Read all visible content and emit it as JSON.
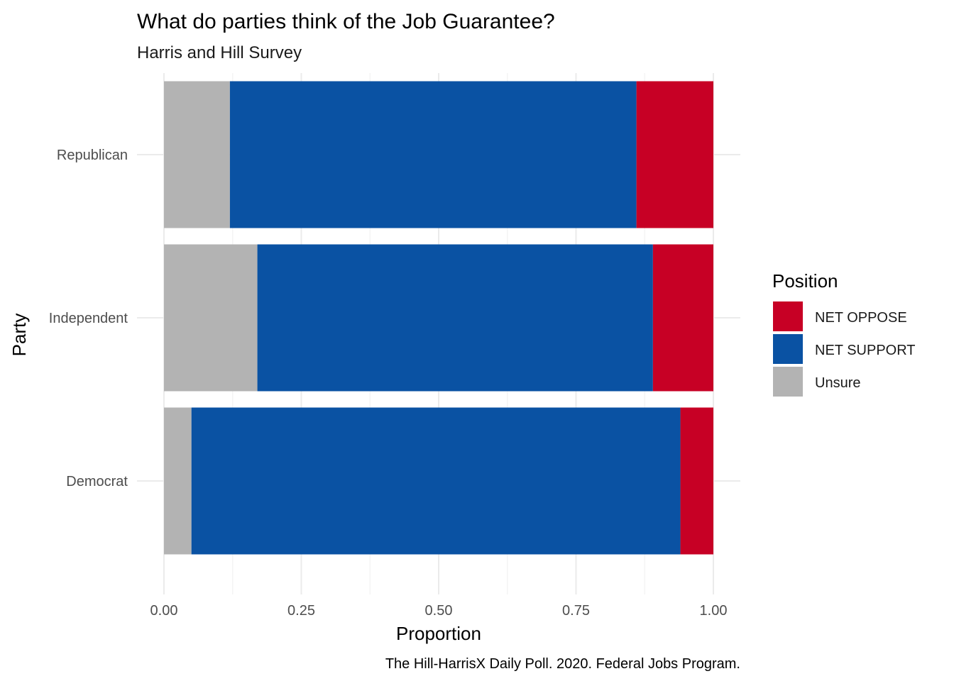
{
  "chart_data": {
    "type": "bar",
    "orientation": "horizontal",
    "stacked": true,
    "title": "What do parties think of the Job Guarantee?",
    "subtitle": "Harris and Hill Survey",
    "xlabel": "Proportion",
    "ylabel": "Party",
    "caption": "The Hill-HarrisX Daily Poll. 2020. Federal Jobs Program.",
    "xlim": [
      0,
      1
    ],
    "x_ticks": [
      0,
      0.25,
      0.5,
      0.75,
      1
    ],
    "x_tick_labels": [
      "0.00",
      "0.25",
      "0.50",
      "0.75",
      "1.00"
    ],
    "categories": [
      "Republican",
      "Independent",
      "Democrat"
    ],
    "grid": true,
    "legend": {
      "title": "Position",
      "placement": "right"
    },
    "series": [
      {
        "name": "Unsure",
        "color": "#b3b3b3",
        "values": [
          0.12,
          0.17,
          0.05
        ]
      },
      {
        "name": "NET SUPPORT",
        "color": "#0a52a3",
        "values": [
          0.74,
          0.72,
          0.89
        ]
      },
      {
        "name": "NET OPPOSE",
        "color": "#c70025",
        "values": [
          0.14,
          0.11,
          0.06
        ]
      }
    ],
    "legend_order": [
      "NET OPPOSE",
      "NET SUPPORT",
      "Unsure"
    ]
  }
}
